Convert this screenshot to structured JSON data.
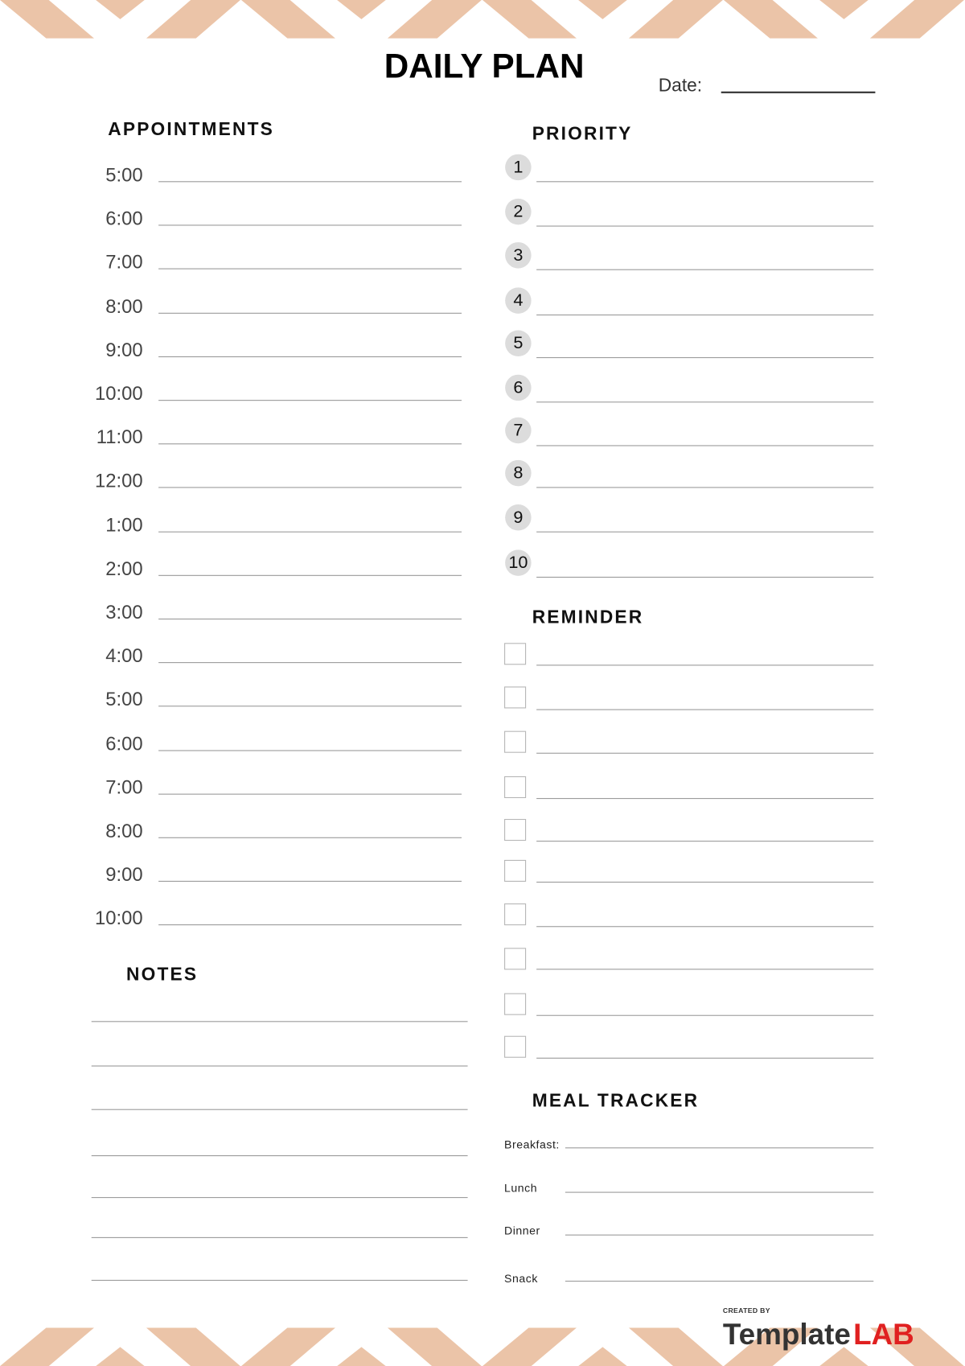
{
  "header": {
    "title": "DAILY PLAN",
    "date_label": "Date:"
  },
  "appointments": {
    "heading": "APPOINTMENTS",
    "times": [
      "5:00",
      "6:00",
      "7:00",
      "8:00",
      "9:00",
      "10:00",
      "11:00",
      "12:00",
      "1:00",
      "2:00",
      "3:00",
      "4:00",
      "5:00",
      "6:00",
      "7:00",
      "8:00",
      "9:00",
      "10:00"
    ]
  },
  "priority": {
    "heading": "PRIORITY",
    "numbers": [
      "1",
      "2",
      "3",
      "4",
      "5",
      "6",
      "7",
      "8",
      "9",
      "10"
    ]
  },
  "reminder": {
    "heading": "REMINDER",
    "count": 10
  },
  "notes": {
    "heading": "NOTES",
    "line_count": 7
  },
  "meal_tracker": {
    "heading": "MEAL TRACKER",
    "meals": [
      "Breakfast:",
      "Lunch",
      "Dinner",
      "Snack"
    ]
  },
  "logo": {
    "created_by": "CREATED BY",
    "brand_part1": "Template",
    "brand_part2": "LAB"
  },
  "colors": {
    "chevron": "#ebc4a8",
    "priority_circle": "#dcdcdc",
    "logo_red": "#e02020"
  }
}
